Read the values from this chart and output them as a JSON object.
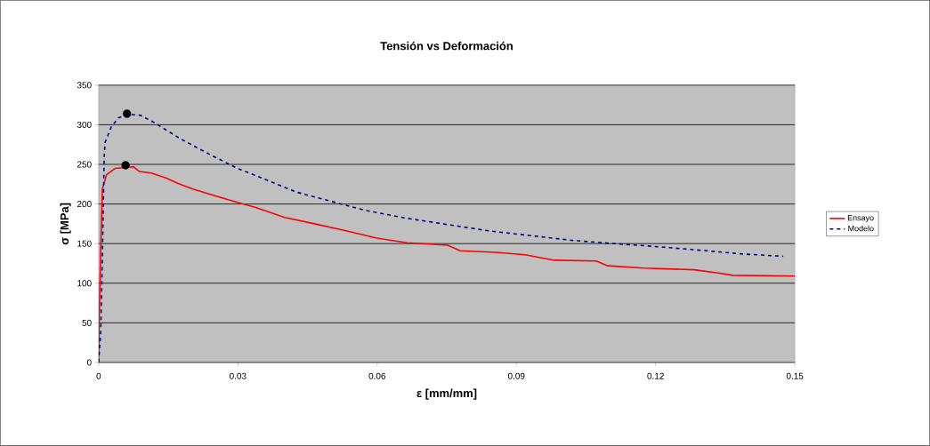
{
  "chart_data": {
    "type": "line",
    "title": "Tensión vs Deformación",
    "xlabel": "ε [mm/mm]",
    "ylabel": "σ [MPa]",
    "xlim": [
      0,
      0.15
    ],
    "ylim": [
      0,
      350
    ],
    "xticks": [
      0,
      0.03,
      0.06,
      0.09,
      0.12,
      0.15
    ],
    "yticks": [
      0,
      50,
      100,
      150,
      200,
      250,
      300,
      350
    ],
    "grid": "y",
    "legend": "right",
    "series": [
      {
        "name": "Ensayo",
        "color": "#ff0000",
        "line_style": "solid",
        "x": [
          0,
          0.00013,
          0.00045,
          0.0008,
          0.0017,
          0.0036,
          0.0075,
          0.0088,
          0.0113,
          0.0145,
          0.0171,
          0.0203,
          0.0247,
          0.0299,
          0.0337,
          0.0401,
          0.0465,
          0.0535,
          0.0599,
          0.0664,
          0.0752,
          0.0779,
          0.0855,
          0.0919,
          0.0982,
          0.1072,
          0.1097,
          0.1174,
          0.1283,
          0.1335,
          0.1366,
          0.15
        ],
        "values": [
          0,
          58,
          144,
          219,
          237,
          245,
          247,
          241,
          239,
          233,
          226,
          219,
          211,
          202,
          196,
          183,
          175,
          166,
          157,
          151,
          148,
          141,
          139,
          136,
          129,
          128,
          122,
          119,
          117,
          113,
          110,
          109
        ]
      },
      {
        "name": "Modelo",
        "color": "#000080",
        "line_style": "dashed",
        "x": [
          0,
          0.00045,
          0.0008,
          0.0012,
          0.0014,
          0.0027,
          0.0043,
          0.0065,
          0.009,
          0.0119,
          0.0177,
          0.0241,
          0.0299,
          0.0363,
          0.0426,
          0.0516,
          0.0574,
          0.0664,
          0.0752,
          0.0842,
          0.0932,
          0.1021,
          0.1111,
          0.1207,
          0.1289,
          0.1385,
          0.1475
        ],
        "values": [
          0,
          39,
          132,
          260,
          278,
          297,
          309,
          313,
          312,
          303,
          282,
          262,
          245,
          230,
          215,
          201,
          192,
          182,
          174,
          166,
          160,
          154,
          150,
          146,
          142,
          137,
          134
        ]
      },
      {
        "type": "scatter",
        "color": "#000000",
        "marker": "circle",
        "x": [
          0.0061,
          0.0058
        ],
        "values": [
          314,
          249
        ]
      }
    ]
  }
}
